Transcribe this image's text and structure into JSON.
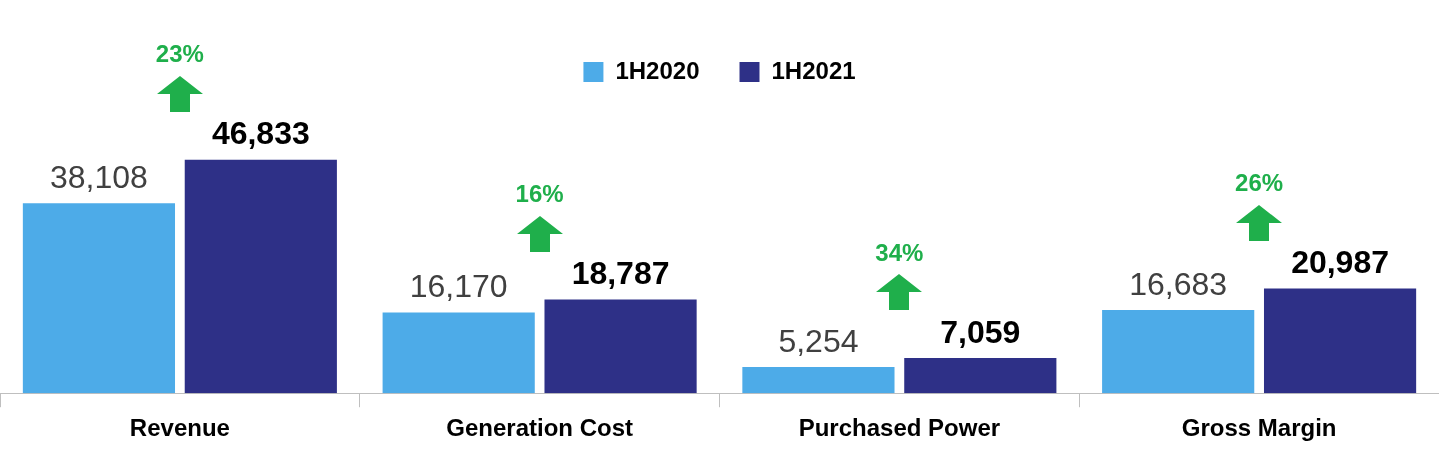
{
  "chart_data": {
    "type": "bar",
    "categories": [
      "Revenue",
      "Generation Cost",
      "Purchased Power",
      "Gross Margin"
    ],
    "series": [
      {
        "name": "1H2020",
        "color": "#4dabe8",
        "values": [
          38108,
          16170,
          5254,
          16683
        ],
        "value_labels": [
          "38,108",
          "16,170",
          "5,254",
          "16,683"
        ]
      },
      {
        "name": "1H2021",
        "color": "#2e3087",
        "values": [
          46833,
          18787,
          7059,
          20987
        ],
        "value_labels": [
          "46,833",
          "18,787",
          "7,059",
          "20,987"
        ]
      }
    ],
    "tick_labels": "x",
    "legend": "top",
    "annotations": [
      "23%",
      "16%",
      "34%",
      "26%"
    ]
  }
}
